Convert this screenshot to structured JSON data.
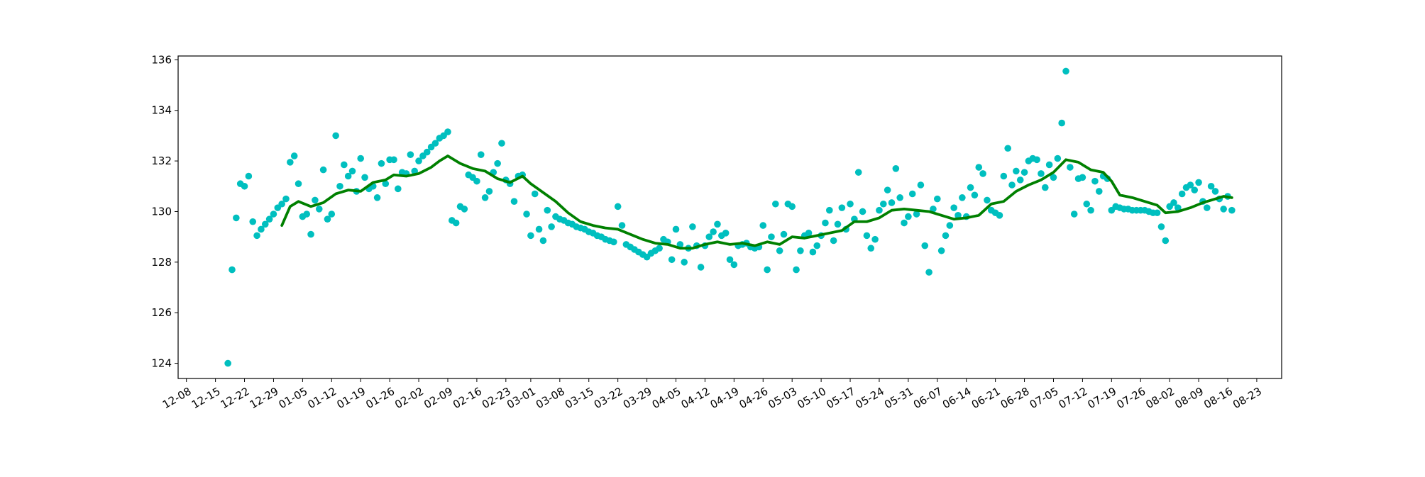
{
  "chart_data": {
    "type": "scatter",
    "xlim": [
      "12-06",
      "08-29"
    ],
    "ylim": [
      123.4,
      136.15
    ],
    "xticks": [
      "12-08",
      "12-15",
      "12-22",
      "12-29",
      "01-05",
      "01-12",
      "01-19",
      "01-26",
      "02-02",
      "02-09",
      "02-16",
      "02-23",
      "03-01",
      "03-08",
      "03-15",
      "03-22",
      "03-29",
      "04-05",
      "04-12",
      "04-19",
      "04-26",
      "05-03",
      "05-10",
      "05-17",
      "05-24",
      "05-31",
      "06-07",
      "06-14",
      "06-21",
      "06-28",
      "07-05",
      "07-12",
      "07-19",
      "07-26",
      "08-02",
      "08-09",
      "08-16",
      "08-23"
    ],
    "yticks": [
      124,
      126,
      128,
      130,
      132,
      134,
      136
    ],
    "grid": false,
    "series": [
      {
        "type": "scatter",
        "color": "#00bfbf",
        "x": [
          "12-18",
          "12-19",
          "12-20",
          "12-21",
          "12-22",
          "12-23",
          "12-24",
          "12-25",
          "12-26",
          "12-27",
          "12-28",
          "12-29",
          "12-30",
          "12-31",
          "01-01",
          "01-02",
          "01-03",
          "01-04",
          "01-05",
          "01-06",
          "01-07",
          "01-08",
          "01-09",
          "01-10",
          "01-11",
          "01-12",
          "01-13",
          "01-14",
          "01-15",
          "01-16",
          "01-17",
          "01-18",
          "01-19",
          "01-20",
          "01-21",
          "01-22",
          "01-23",
          "01-24",
          "01-25",
          "01-26",
          "01-27",
          "01-28",
          "01-29",
          "01-30",
          "01-31",
          "02-01",
          "02-02",
          "02-03",
          "02-04",
          "02-05",
          "02-06",
          "02-07",
          "02-08",
          "02-09",
          "02-10",
          "02-11",
          "02-12",
          "02-13",
          "02-14",
          "02-15",
          "02-16",
          "02-17",
          "02-18",
          "02-19",
          "02-20",
          "02-21",
          "02-22",
          "02-23",
          "02-24",
          "02-25",
          "02-26",
          "02-27",
          "02-28",
          "03-01",
          "03-02",
          "03-03",
          "03-04",
          "03-05",
          "03-06",
          "03-07",
          "03-08",
          "03-09",
          "03-10",
          "03-11",
          "03-12",
          "03-13",
          "03-14",
          "03-15",
          "03-16",
          "03-17",
          "03-18",
          "03-19",
          "03-20",
          "03-21",
          "03-22",
          "03-23",
          "03-24",
          "03-25",
          "03-26",
          "03-27",
          "03-28",
          "03-29",
          "03-30",
          "03-31",
          "04-01",
          "04-02",
          "04-03",
          "04-04",
          "04-05",
          "04-06",
          "04-07",
          "04-08",
          "04-09",
          "04-10",
          "04-11",
          "04-12",
          "04-13",
          "04-14",
          "04-15",
          "04-16",
          "04-17",
          "04-18",
          "04-19",
          "04-20",
          "04-21",
          "04-22",
          "04-23",
          "04-24",
          "04-25",
          "04-26",
          "04-27",
          "04-28",
          "04-29",
          "04-30",
          "05-01",
          "05-02",
          "05-03",
          "05-04",
          "05-05",
          "05-06",
          "05-07",
          "05-08",
          "05-09",
          "05-10",
          "05-11",
          "05-12",
          "05-13",
          "05-14",
          "05-15",
          "05-16",
          "05-17",
          "05-18",
          "05-19",
          "05-20",
          "05-21",
          "05-22",
          "05-23",
          "05-24",
          "05-25",
          "05-26",
          "05-27",
          "05-28",
          "05-29",
          "05-30",
          "05-31",
          "06-01",
          "06-02",
          "06-03",
          "06-04",
          "06-05",
          "06-06",
          "06-07",
          "06-08",
          "06-09",
          "06-10",
          "06-11",
          "06-12",
          "06-13",
          "06-14",
          "06-15",
          "06-16",
          "06-17",
          "06-18",
          "06-19",
          "06-20",
          "06-21",
          "06-22",
          "06-23",
          "06-24",
          "06-25",
          "06-26",
          "06-27",
          "06-28",
          "06-29",
          "06-30",
          "07-01",
          "07-02",
          "07-03",
          "07-04",
          "07-05",
          "07-06",
          "07-07",
          "07-08",
          "07-09",
          "07-10",
          "07-11",
          "07-12",
          "07-13",
          "07-14",
          "07-15",
          "07-16",
          "07-17",
          "07-18",
          "07-19",
          "07-20",
          "07-21",
          "07-22",
          "07-23",
          "07-24",
          "07-25",
          "07-26",
          "07-27",
          "07-28",
          "07-29",
          "07-30",
          "07-31",
          "08-01",
          "08-02",
          "08-03",
          "08-04",
          "08-05",
          "08-06",
          "08-07",
          "08-08",
          "08-09",
          "08-10",
          "08-11",
          "08-12",
          "08-13",
          "08-14",
          "08-15",
          "08-16",
          "08-17"
        ],
        "values": [
          124.0,
          127.7,
          129.75,
          131.1,
          131.0,
          131.4,
          129.6,
          129.05,
          129.3,
          129.5,
          129.7,
          129.9,
          130.15,
          130.3,
          130.5,
          131.95,
          132.2,
          131.1,
          129.8,
          129.9,
          129.1,
          130.45,
          130.1,
          131.65,
          129.7,
          129.9,
          133.0,
          131.0,
          131.85,
          131.4,
          131.6,
          130.8,
          132.1,
          131.35,
          130.9,
          131.0,
          130.55,
          131.9,
          131.1,
          132.05,
          132.05,
          130.9,
          131.55,
          131.5,
          132.25,
          131.6,
          132.0,
          132.2,
          132.35,
          132.55,
          132.7,
          132.9,
          133.0,
          133.15,
          129.65,
          129.55,
          130.2,
          130.1,
          131.45,
          131.35,
          131.2,
          132.25,
          130.55,
          130.8,
          131.55,
          131.9,
          132.7,
          131.25,
          131.1,
          130.4,
          131.4,
          131.45,
          129.9,
          129.05,
          130.7,
          129.3,
          128.85,
          130.05,
          129.4,
          129.8,
          129.7,
          129.65,
          129.55,
          129.5,
          129.4,
          129.35,
          129.3,
          129.2,
          129.15,
          129.05,
          129.0,
          128.9,
          128.85,
          128.8,
          130.2,
          129.45,
          128.7,
          128.6,
          128.5,
          128.4,
          128.3,
          128.2,
          128.35,
          128.45,
          128.55,
          128.9,
          128.8,
          128.1,
          129.3,
          128.7,
          128.0,
          128.55,
          129.4,
          128.65,
          127.8,
          128.65,
          129.0,
          129.2,
          129.5,
          129.05,
          129.15,
          128.1,
          127.9,
          128.65,
          128.7,
          128.75,
          128.6,
          128.55,
          128.6,
          129.45,
          127.7,
          129.0,
          130.3,
          128.45,
          129.1,
          130.3,
          130.2,
          127.7,
          128.45,
          129.05,
          129.15,
          128.4,
          128.65,
          129.05,
          129.55,
          130.05,
          128.85,
          129.5,
          130.15,
          129.3,
          130.3,
          129.7,
          131.55,
          130.0,
          129.05,
          128.55,
          128.9,
          130.05,
          130.3,
          130.85,
          130.35,
          131.7,
          130.55,
          129.55,
          129.8,
          130.7,
          129.9,
          131.05,
          128.65,
          127.6,
          130.1,
          130.5,
          128.45,
          129.05,
          129.45,
          130.15,
          129.85,
          130.55,
          129.8,
          130.95,
          130.65,
          131.75,
          131.5,
          130.45,
          130.05,
          129.95,
          129.85,
          131.4,
          132.5,
          131.05,
          131.6,
          131.25,
          131.55,
          132.0,
          132.1,
          132.05,
          131.5,
          130.95,
          131.85,
          131.35,
          132.1,
          133.5,
          135.55,
          131.75,
          129.9,
          131.3,
          131.35,
          130.3,
          130.05,
          131.2,
          130.8,
          131.4,
          131.3,
          130.05,
          130.2,
          130.15,
          130.1,
          130.1,
          130.05,
          130.05,
          130.05,
          130.05,
          130.0,
          129.95,
          129.95,
          129.4,
          128.85,
          130.2,
          130.35,
          130.15,
          130.7,
          130.95,
          131.05,
          130.85,
          131.15,
          130.4,
          130.15,
          131.0,
          130.8,
          130.5,
          130.1,
          130.6,
          130.05
        ]
      },
      {
        "type": "line",
        "color": "#008000",
        "x": [
          "12-31",
          "01-02",
          "01-04",
          "01-07",
          "01-10",
          "01-13",
          "01-16",
          "01-19",
          "01-22",
          "01-25",
          "01-27",
          "01-30",
          "02-02",
          "02-05",
          "02-07",
          "02-09",
          "02-12",
          "02-15",
          "02-18",
          "02-21",
          "02-24",
          "02-27",
          "03-01",
          "03-04",
          "03-07",
          "03-10",
          "03-13",
          "03-16",
          "03-19",
          "03-22",
          "03-25",
          "03-28",
          "03-31",
          "04-03",
          "04-06",
          "04-09",
          "04-12",
          "04-15",
          "04-18",
          "04-21",
          "04-24",
          "04-27",
          "04-30",
          "05-03",
          "05-06",
          "05-09",
          "05-12",
          "05-15",
          "05-18",
          "05-21",
          "05-24",
          "05-27",
          "05-30",
          "06-02",
          "06-05",
          "06-08",
          "06-11",
          "06-14",
          "06-17",
          "06-20",
          "06-23",
          "06-26",
          "06-29",
          "07-02",
          "07-05",
          "07-08",
          "07-11",
          "07-14",
          "07-17",
          "07-19",
          "07-21",
          "07-24",
          "07-27",
          "07-30",
          "08-01",
          "08-04",
          "08-07",
          "08-10",
          "08-13",
          "08-15",
          "08-17"
        ],
        "values": [
          129.45,
          130.2,
          130.4,
          130.2,
          130.35,
          130.7,
          130.85,
          130.8,
          131.15,
          131.25,
          131.45,
          131.4,
          131.5,
          131.75,
          132.0,
          132.2,
          131.9,
          131.7,
          131.6,
          131.3,
          131.15,
          131.4,
          131.1,
          130.75,
          130.4,
          129.95,
          129.6,
          129.45,
          129.35,
          129.3,
          129.1,
          128.9,
          128.75,
          128.7,
          128.55,
          128.55,
          128.7,
          128.8,
          128.7,
          128.75,
          128.65,
          128.8,
          128.7,
          129.0,
          128.95,
          129.05,
          129.15,
          129.25,
          129.6,
          129.6,
          129.75,
          130.05,
          130.1,
          130.05,
          130.0,
          129.85,
          129.7,
          129.75,
          129.85,
          130.3,
          130.4,
          130.8,
          131.05,
          131.25,
          131.55,
          132.05,
          131.95,
          131.65,
          131.55,
          131.2,
          130.65,
          130.55,
          130.4,
          130.25,
          129.95,
          130.0,
          130.15,
          130.35,
          130.5,
          130.6,
          130.55
        ]
      }
    ]
  }
}
